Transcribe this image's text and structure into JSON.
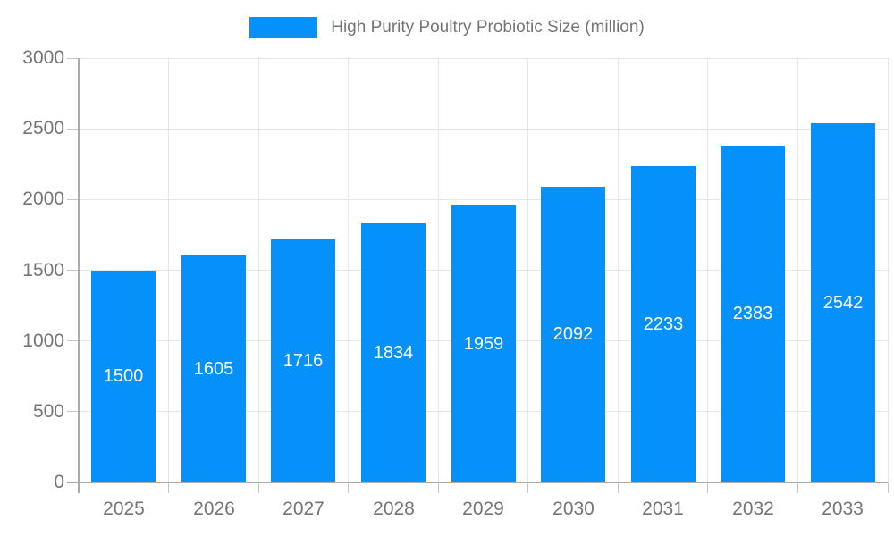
{
  "legend": {
    "items": [
      {
        "label": "High Purity Poultry Probiotic Size (million)",
        "color": "#0590fa"
      }
    ]
  },
  "chart_data": {
    "type": "bar",
    "title": "High Purity Poultry Probiotic Size (million)",
    "categories": [
      "2025",
      "2026",
      "2027",
      "2028",
      "2029",
      "2030",
      "2031",
      "2032",
      "2033"
    ],
    "values": [
      1500,
      1605,
      1716,
      1834,
      1959,
      2092,
      2233,
      2383,
      2542
    ],
    "series": [
      {
        "name": "High Purity Poultry Probiotic Size (million)",
        "values": [
          1500,
          1605,
          1716,
          1834,
          1959,
          2092,
          2233,
          2383,
          2542
        ]
      }
    ],
    "xlabel": "",
    "ylabel": "",
    "ylim": [
      0,
      3000
    ],
    "yticks": [
      0,
      500,
      1000,
      1500,
      2000,
      2500,
      3000
    ],
    "grid": true,
    "legend_position": "top",
    "bar_color": "#0590fa",
    "value_label_color": "#ffffff",
    "axis_text_color": "#757575"
  }
}
